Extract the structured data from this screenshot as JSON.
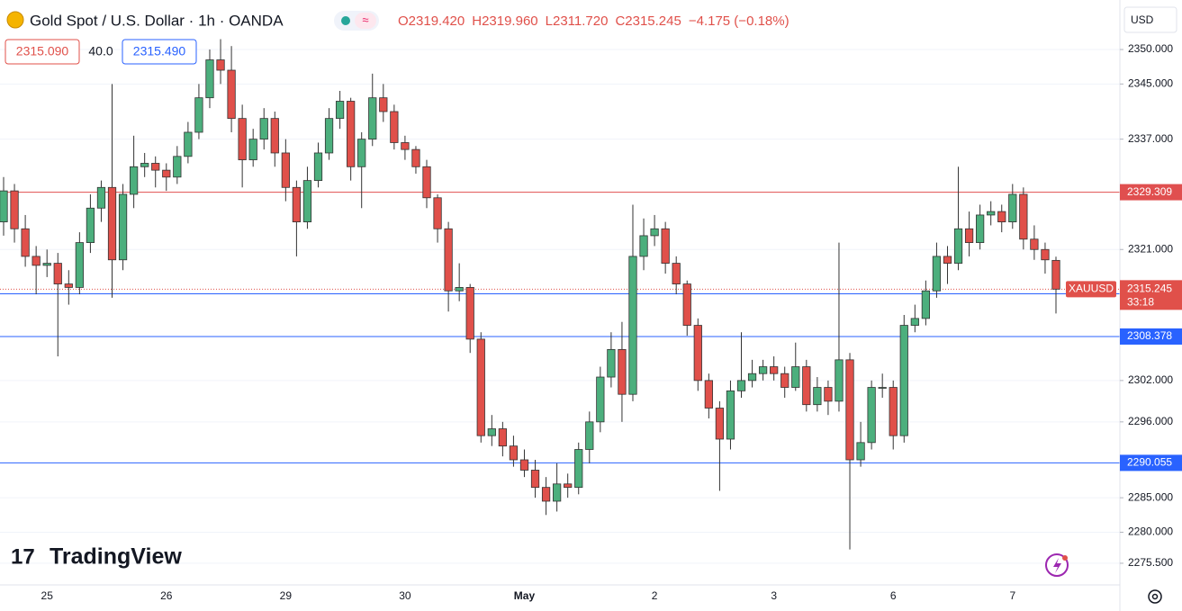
{
  "chart_data": {
    "type": "candlestick",
    "title": "Gold Spot / U.S. Dollar · 1h · OANDA",
    "header_ohlc": [
      "O2319.420",
      "H2319.960",
      "L2311.720",
      "C2315.245",
      "−4.175 (−0.18%)"
    ],
    "bid": "2315.090",
    "spread": "40.0",
    "ask": "2315.490",
    "currency": "USD",
    "watermark": "TradingView",
    "symbol": "XAUUSD",
    "last_price": 2315.245,
    "countdown": "33:18",
    "up_color": "#4caf7d",
    "down_color": "#e0504a",
    "grid": true,
    "ylim": [
      2272.36,
      2357.18
    ],
    "yticks": [
      {
        "value": 2350,
        "label": "2350.000"
      },
      {
        "value": 2345,
        "label": "2345.000"
      },
      {
        "value": 2337,
        "label": "2337.000"
      },
      {
        "value": 2321,
        "label": "2321.000"
      },
      {
        "value": 2302,
        "label": "2302.000"
      },
      {
        "value": 2296,
        "label": "2296.000"
      },
      {
        "value": 2285,
        "label": "2285.000"
      },
      {
        "value": 2280,
        "label": "2280.000"
      },
      {
        "value": 2275.5,
        "label": "2275.500"
      }
    ],
    "hlines": [
      {
        "value": 2329.309,
        "color": "#e04f4f"
      },
      {
        "value": 2314.572,
        "color": "#2962ff"
      },
      {
        "value": 2308.378,
        "color": "#2962ff"
      },
      {
        "value": 2290.055,
        "color": "#2962ff"
      }
    ],
    "categories": [
      null,
      null,
      null,
      null,
      "25",
      null,
      null,
      null,
      null,
      null,
      null,
      null,
      null,
      null,
      null,
      "26",
      null,
      null,
      null,
      null,
      null,
      null,
      null,
      null,
      null,
      null,
      "29",
      null,
      null,
      null,
      null,
      null,
      null,
      null,
      null,
      null,
      null,
      "30",
      null,
      null,
      null,
      null,
      null,
      null,
      null,
      null,
      null,
      null,
      "May",
      null,
      null,
      null,
      null,
      null,
      null,
      null,
      null,
      null,
      null,
      null,
      "2",
      null,
      null,
      null,
      null,
      null,
      null,
      null,
      null,
      null,
      null,
      "3",
      null,
      null,
      null,
      null,
      null,
      null,
      null,
      null,
      null,
      null,
      "6",
      null,
      null,
      null,
      null,
      null,
      null,
      null,
      null,
      null,
      null,
      "7",
      null,
      null,
      null,
      null
    ],
    "open": [
      2325,
      2329.5,
      2324,
      2320,
      2318.7,
      2319,
      2316,
      2315.5,
      2322,
      2327,
      2330,
      2319.5,
      2329,
      2333,
      2333.5,
      2332.5,
      2331.5,
      2334.5,
      2338,
      2343,
      2348.5,
      2347,
      2340,
      2334,
      2337,
      2340,
      2335,
      2330,
      2325,
      2331,
      2335,
      2340,
      2342.5,
      2333,
      2337,
      2343,
      2341,
      2336.5,
      2335.5,
      2333,
      2328.5,
      2324,
      2315,
      2315.5,
      2308,
      2294,
      2295,
      2292.5,
      2290.5,
      2289,
      2286.5,
      2284.5,
      2287,
      2286.5,
      2292,
      2296,
      2302.5,
      2306.5,
      2300,
      2320,
      2323,
      2324,
      2319,
      2316,
      2310,
      2302,
      2298,
      2293.5,
      2300.5,
      2302,
      2303,
      2304,
      2303,
      2301,
      2304,
      2298.5,
      2301,
      2299,
      2305,
      2290.5,
      2293,
      2301,
      2301,
      2294,
      2310,
      2311,
      2315,
      2320,
      2319,
      2324,
      2322,
      2326,
      2326.5,
      2325,
      2329,
      2322.5,
      2321,
      2319.42
    ],
    "high": [
      2331.5,
      2330.5,
      2326,
      2321.5,
      2321,
      2320.5,
      2318,
      2323.5,
      2329,
      2331,
      2345,
      2330.5,
      2337.5,
      2335,
      2334.5,
      2333.5,
      2336,
      2339.5,
      2345,
      2350,
      2351.5,
      2350.5,
      2342,
      2338.5,
      2341.5,
      2341,
      2337,
      2331,
      2333,
      2336.5,
      2341.5,
      2344,
      2343,
      2338,
      2346.5,
      2345,
      2342,
      2337.5,
      2336,
      2334,
      2329,
      2325,
      2319,
      2316,
      2309,
      2297,
      2296,
      2294,
      2292,
      2290.5,
      2288,
      2290,
      2288.5,
      2293,
      2297.5,
      2304,
      2309,
      2310.5,
      2327.5,
      2325.5,
      2326,
      2325,
      2320,
      2316.5,
      2311,
      2303,
      2299,
      2302,
      2309,
      2305,
      2305,
      2305.5,
      2304,
      2307.5,
      2305,
      2302.5,
      2302,
      2322,
      2306,
      2296,
      2302,
      2303,
      2302,
      2311.5,
      2313,
      2316.5,
      2322,
      2321.5,
      2333,
      2326.5,
      2327.5,
      2328,
      2327.5,
      2330.5,
      2330,
      2324.5,
      2322,
      2319.96
    ],
    "low": [
      2323,
      2322,
      2318.5,
      2314.5,
      2317,
      2305.5,
      2313,
      2314.5,
      2320.5,
      2325,
      2314,
      2318,
      2327,
      2331.5,
      2330,
      2329.5,
      2330.5,
      2333.5,
      2337,
      2341.5,
      2345,
      2338,
      2330,
      2333,
      2335.5,
      2333,
      2328,
      2320,
      2324,
      2330,
      2334,
      2338.5,
      2331,
      2327,
      2336,
      2339.5,
      2335.5,
      2334,
      2332,
      2327,
      2322,
      2312,
      2313.5,
      2306,
      2293,
      2292.5,
      2291,
      2289.5,
      2288,
      2285,
      2282.5,
      2283,
      2285,
      2285.5,
      2290,
      2294.5,
      2301,
      2296,
      2299,
      2318,
      2321.5,
      2317.5,
      2314.5,
      2308.5,
      2300.5,
      2296.5,
      2286,
      2292,
      2299.5,
      2301,
      2302,
      2302,
      2299.5,
      2300.5,
      2297.5,
      2297.5,
      2297,
      2297.5,
      2277.5,
      2289.5,
      2292,
      2299.5,
      2292,
      2293,
      2309,
      2310,
      2314,
      2316,
      2318,
      2320,
      2321,
      2324.5,
      2323.5,
      2324,
      2321,
      2319.5,
      2317.5,
      2311.72
    ],
    "close": [
      2329.5,
      2324,
      2320,
      2318.7,
      2319,
      2316,
      2315.5,
      2322,
      2327,
      2330,
      2319.5,
      2329,
      2333,
      2333.5,
      2332.5,
      2331.5,
      2334.5,
      2338,
      2343,
      2348.5,
      2347,
      2340,
      2334,
      2337,
      2340,
      2335,
      2330,
      2325,
      2331,
      2335,
      2340,
      2342.5,
      2333,
      2337,
      2343,
      2341,
      2336.5,
      2335.5,
      2333,
      2328.5,
      2324,
      2315,
      2315.5,
      2308,
      2294,
      2295,
      2292.5,
      2290.5,
      2289,
      2286.5,
      2284.5,
      2287,
      2286.5,
      2292,
      2296,
      2302.5,
      2306.5,
      2300,
      2320,
      2323,
      2324,
      2319,
      2316,
      2310,
      2302,
      2298,
      2293.5,
      2300.5,
      2302,
      2303,
      2304,
      2303,
      2301,
      2304,
      2298.5,
      2301,
      2299,
      2305,
      2290.5,
      2293,
      2301,
      2301,
      2294,
      2310,
      2311,
      2315,
      2320,
      2319,
      2324,
      2322,
      2326,
      2326.5,
      2325,
      2329,
      2322.5,
      2321,
      2319.5,
      2315.245
    ]
  }
}
